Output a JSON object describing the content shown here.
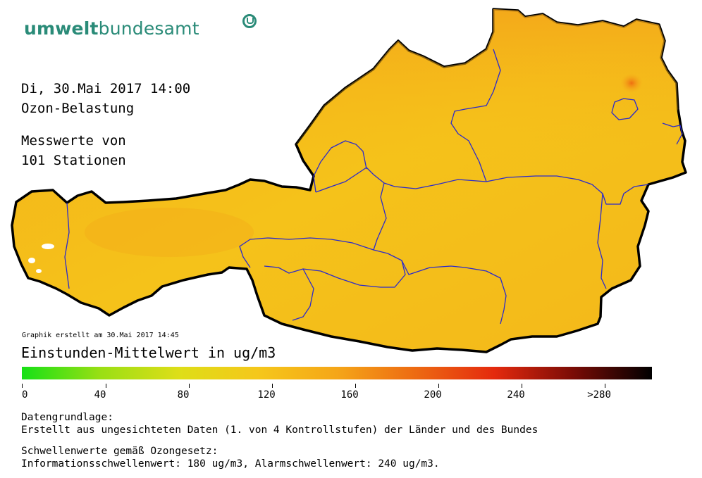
{
  "logo": {
    "part1": "umwelt",
    "part2": "bundesamt",
    "icon": "umweltbundesamt-logo-icon"
  },
  "header": {
    "date_line": "Di, 30.Mai 2017 14:00",
    "title": "Ozon-Belastung",
    "stations_line1": "Messwerte von",
    "stations_line2": "101 Stationen"
  },
  "created_line": "Graphik erstellt am 30.Mai 2017 14:45",
  "legend": {
    "title": "Einstunden-Mittelwert in ug/m3",
    "ticks": [
      "0",
      "40",
      "80",
      "120",
      "160",
      "200",
      "240",
      ">280"
    ],
    "colors": [
      "#16e016",
      "#9adf14",
      "#dede18",
      "#f5c71a",
      "#f5a618",
      "#ed6a12",
      "#e42a0e",
      "#7a0c06",
      "#000000"
    ]
  },
  "footer": {
    "line1": "Datengrundlage:",
    "line2": "Erstellt aus ungesichteten Daten (1. von 4 Kontrollstufen) der Länder und des Bundes",
    "line3": "Schwellenwerte gemäß Ozongesetz:",
    "line4": "Informationsschwellenwert: 180 ug/m3, Alarmschwellenwert: 240 ug/m3."
  },
  "map_colors": {
    "fill_low": "#f5c41a",
    "fill_high": "#f5a818",
    "hotspot": "#ef7a14",
    "outline": "#000000",
    "state_borders": "#2a2acc"
  }
}
